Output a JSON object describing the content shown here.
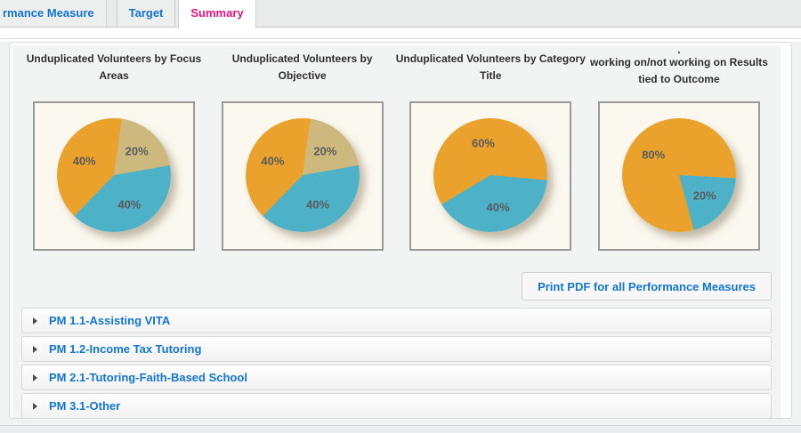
{
  "tabs": [
    {
      "label": "rmance Measure",
      "active": false
    },
    {
      "label": "Target",
      "active": false
    },
    {
      "label": "Summary",
      "active": true
    }
  ],
  "colors": {
    "tab_text_blue": "#1375D0",
    "active_tab_pink": "#EC127F",
    "pie_orange": "#EAA22C",
    "pie_tan": "#CDB87D",
    "pie_teal": "#4DB1C8",
    "chart_box_bg": "#FBF8EF",
    "link_blue": "#1375D0"
  },
  "chart_data": [
    {
      "type": "pie",
      "title": "Unduplicated Volunteers by Focus Areas",
      "title_lines": [
        "Unduplicated Volunteers by Focus",
        "Areas"
      ],
      "start_deg": 8,
      "slices": [
        {
          "name": "tan",
          "label": "20%",
          "value": 20,
          "color": "#CDB87D"
        },
        {
          "name": "teal",
          "label": "40%",
          "value": 40,
          "color": "#4DB1C8"
        },
        {
          "name": "orange",
          "label": "40%",
          "value": 40,
          "color": "#EAA22C"
        }
      ]
    },
    {
      "type": "pie",
      "title": "Unduplicated Volunteers by Objective",
      "title_lines": [
        "Unduplicated Volunteers by",
        "Objective"
      ],
      "start_deg": 8,
      "slices": [
        {
          "name": "tan",
          "label": "20%",
          "value": 20,
          "color": "#CDB87D"
        },
        {
          "name": "teal",
          "label": "40%",
          "value": 40,
          "color": "#4DB1C8"
        },
        {
          "name": "orange",
          "label": "40%",
          "value": 40,
          "color": "#EAA22C"
        }
      ]
    },
    {
      "type": "pie",
      "title": "Unduplicated Volunteers by Category Title",
      "title_lines": [
        "Unduplicated Volunteers by Category",
        "Title"
      ],
      "start_deg": 95,
      "slices": [
        {
          "name": "teal",
          "label": "40%",
          "value": 40,
          "color": "#4DB1C8"
        },
        {
          "name": "orange",
          "label": "60%",
          "value": 60,
          "color": "#EAA22C"
        }
      ]
    },
    {
      "type": "pie",
      "title": "working on/not working on Results tied to Outcome",
      "title_lines": [
        ".",
        "working on/not working on Results",
        "tied to Outcome"
      ],
      "start_deg": 93,
      "slices": [
        {
          "name": "teal",
          "label": "20%",
          "value": 20,
          "color": "#4DB1C8"
        },
        {
          "name": "orange",
          "label": "80%",
          "value": 80,
          "color": "#EAA22C"
        }
      ]
    }
  ],
  "print_button": {
    "label": "Print PDF for all Performance Measures"
  },
  "accordion": [
    {
      "label": "PM 1.1-Assisting VITA"
    },
    {
      "label": "PM 1.2-Income Tax Tutoring"
    },
    {
      "label": "PM 2.1-Tutoring-Faith-Based School"
    },
    {
      "label": "PM 3.1-Other"
    }
  ]
}
